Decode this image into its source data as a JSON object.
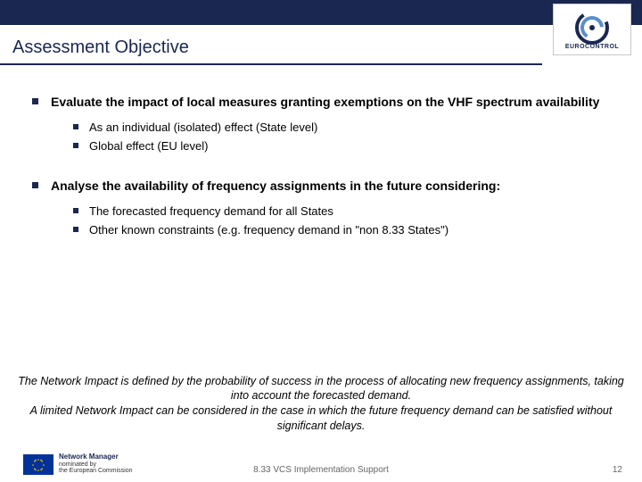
{
  "header": {
    "title": "Assessment Objective",
    "logo_label": "EUROCONTROL"
  },
  "bullets": [
    {
      "text": "Evaluate the impact of local measures granting exemptions on the VHF spectrum availability",
      "subs": [
        "As an individual (isolated) effect (State level)",
        "Global effect (EU level)"
      ]
    },
    {
      "text": "Analyse the availability of frequency assignments in the future considering:",
      "subs": [
        "The forecasted frequency demand for all States",
        "Other known constraints (e.g. frequency demand in \"non 8.33 States\")"
      ]
    }
  ],
  "footer_note": "The Network Impact is defined by the probability of success in the process of allocating new frequency assignments, taking into account the forecasted demand.\nA limited Network Impact can be considered in the case in which the future frequency demand can be satisfied without significant delays.",
  "footer": {
    "nm_line1": "Network Manager",
    "nm_line2": "nominated by",
    "nm_line3": "the European Commission",
    "center": "8.33 VCS Implementation Support",
    "page": "12"
  },
  "colors": {
    "brand_navy": "#1a2751",
    "eu_blue": "#003399",
    "eu_gold": "#ffcc00"
  }
}
